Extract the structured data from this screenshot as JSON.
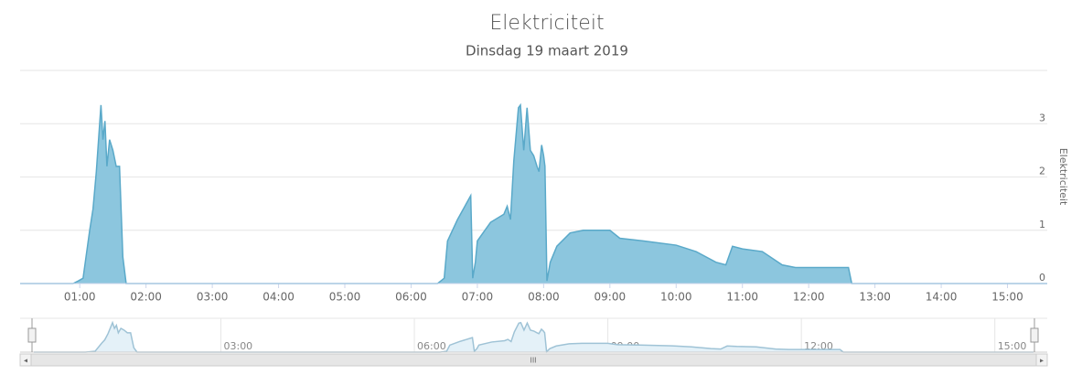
{
  "chart_data": {
    "type": "area",
    "title": "Elektriciteit",
    "subtitle": "Dinsdag 19 maart 2019",
    "y_axis_title": "Elektriciteit",
    "color": "#8cc6de",
    "line_color": "#5aa9c9",
    "grid": true,
    "x": [
      0.1,
      0.9,
      0.98,
      1.05,
      1.15,
      1.2,
      1.25,
      1.32,
      1.35,
      1.38,
      1.41,
      1.45,
      1.5,
      1.55,
      1.6,
      1.65,
      1.7,
      6.4,
      6.5,
      6.55,
      6.7,
      6.9,
      6.93,
      6.97,
      7.0,
      7.2,
      7.4,
      7.45,
      7.5,
      7.55,
      7.62,
      7.65,
      7.7,
      7.75,
      7.8,
      7.85,
      7.9,
      7.93,
      7.97,
      8.0,
      8.02,
      8.05,
      8.1,
      8.2,
      8.4,
      8.6,
      9.0,
      9.15,
      9.5,
      10.0,
      10.3,
      10.6,
      10.75,
      10.85,
      11.0,
      11.3,
      11.6,
      11.8,
      12.6,
      12.65,
      15.6
    ],
    "values": [
      0,
      0,
      0.05,
      0.1,
      1.0,
      1.4,
      2.1,
      3.35,
      2.7,
      3.05,
      2.2,
      2.7,
      2.5,
      2.2,
      2.2,
      0.5,
      0,
      0,
      0.1,
      0.8,
      1.2,
      1.65,
      0.1,
      0.4,
      0.8,
      1.15,
      1.3,
      1.45,
      1.2,
      2.3,
      3.3,
      3.35,
      2.5,
      3.3,
      2.5,
      2.4,
      2.2,
      2.1,
      2.6,
      2.4,
      2.2,
      0.05,
      0.4,
      0.7,
      0.95,
      1.0,
      1.0,
      0.85,
      0.8,
      0.72,
      0.6,
      0.4,
      0.35,
      0.7,
      0.65,
      0.6,
      0.35,
      0.3,
      0.3,
      0,
      0
    ],
    "xlim": [
      0.1,
      15.6
    ],
    "xticks": [
      {
        "value": 1,
        "label": "01:00"
      },
      {
        "value": 2,
        "label": "02:00"
      },
      {
        "value": 3,
        "label": "03:00"
      },
      {
        "value": 4,
        "label": "04:00"
      },
      {
        "value": 5,
        "label": "05:00"
      },
      {
        "value": 6,
        "label": "06:00"
      },
      {
        "value": 7,
        "label": "07:00"
      },
      {
        "value": 8,
        "label": "08:00"
      },
      {
        "value": 9,
        "label": "09:00"
      },
      {
        "value": 10,
        "label": "10:00"
      },
      {
        "value": 11,
        "label": "11:00"
      },
      {
        "value": 12,
        "label": "12:00"
      },
      {
        "value": 13,
        "label": "13:00"
      },
      {
        "value": 14,
        "label": "14:00"
      },
      {
        "value": 15,
        "label": "15:00"
      }
    ],
    "ylim": [
      0,
      4
    ],
    "yticks": [
      0,
      1,
      2,
      3
    ],
    "navigator": {
      "color": "#e4f1f8",
      "line_color": "#9fc3d6",
      "xticks": [
        {
          "value": 3,
          "label": "03:00"
        },
        {
          "value": 6,
          "label": "06:00"
        },
        {
          "value": 9,
          "label": "09:00"
        },
        {
          "value": 12,
          "label": "12:00"
        },
        {
          "value": 15,
          "label": "15:00"
        }
      ]
    }
  }
}
